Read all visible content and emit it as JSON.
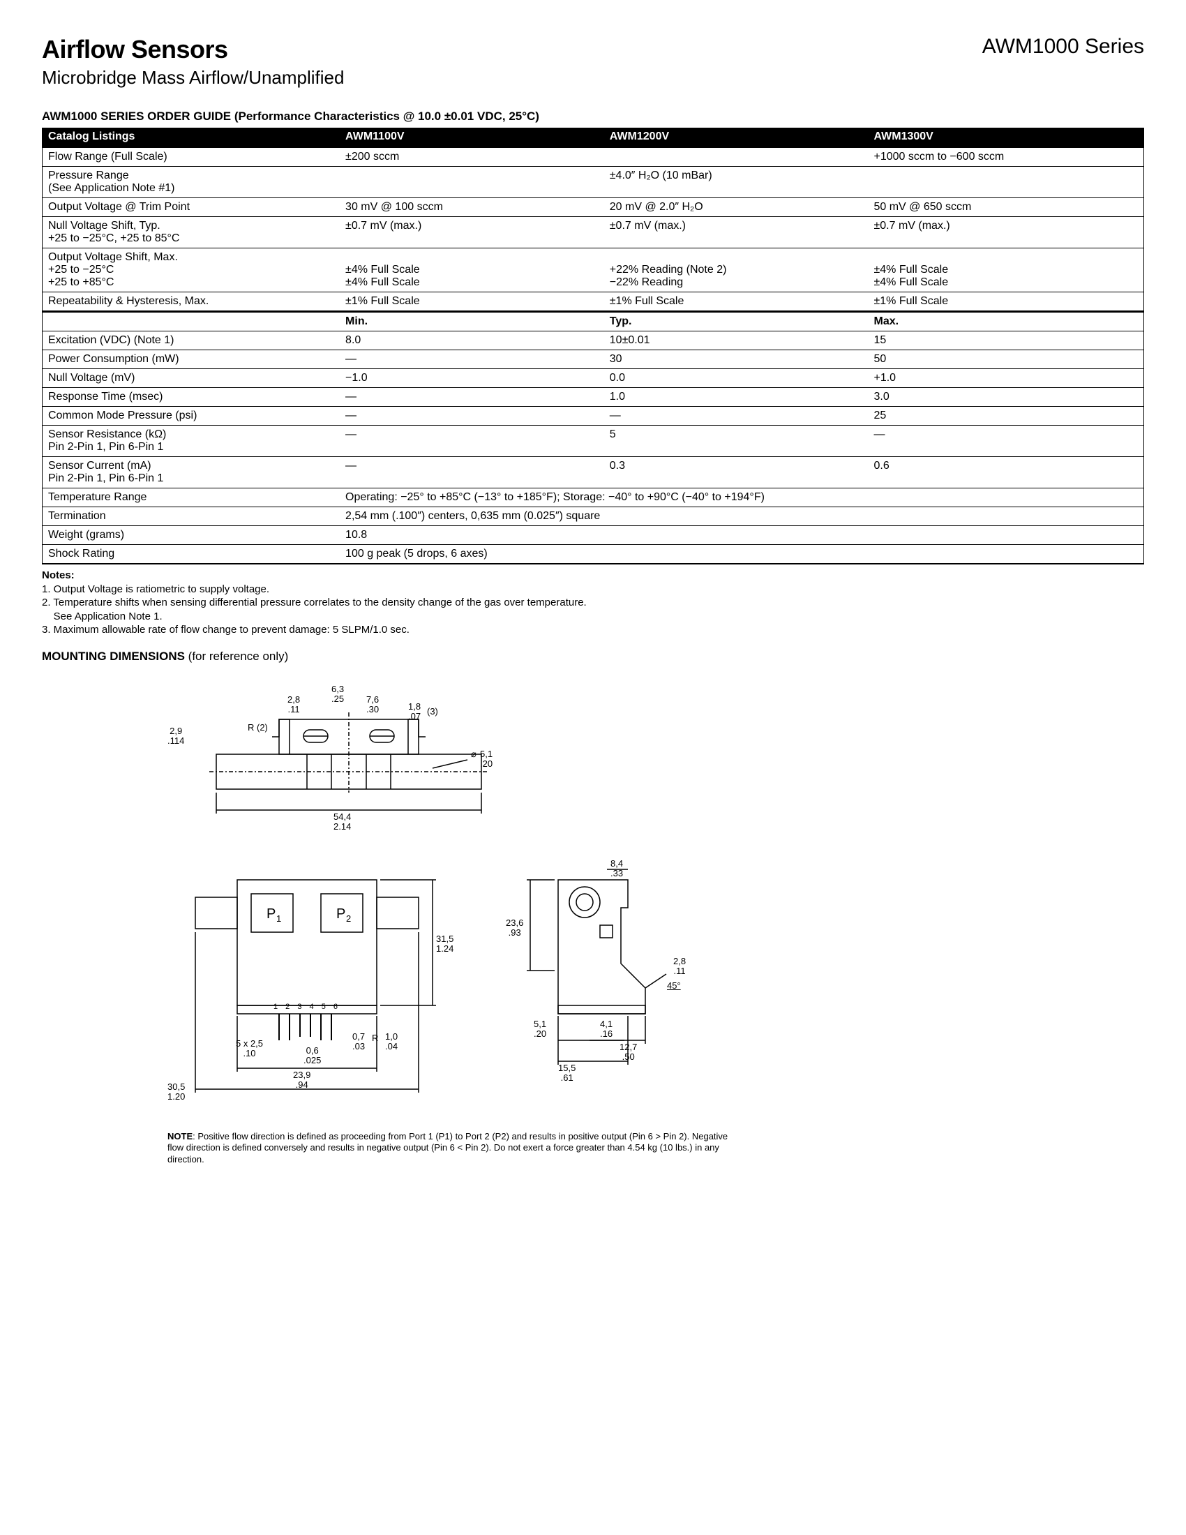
{
  "header": {
    "title": "Airflow Sensors",
    "series": "AWM1000 Series",
    "subtitle": "Microbridge Mass Airflow/Unamplified"
  },
  "orderGuide": {
    "heading": "AWM1000 SERIES ORDER GUIDE (Performance Characteristics @ 10.0 ±0.01 VDC, 25°C)",
    "catalogLabel": "Catalog Listings",
    "cols": [
      "AWM1100V",
      "AWM1200V",
      "AWM1300V"
    ],
    "rows": [
      {
        "label": "Flow Range (Full Scale)",
        "a": "±200 sccm",
        "b": "",
        "c": "+1000 sccm to −600 sccm"
      },
      {
        "label": "Pressure Range\n(See Application Note #1)",
        "a": "",
        "b": "±4.0″ H₂O (10 mBar)",
        "c": ""
      },
      {
        "label": "Output Voltage @ Trim Point",
        "a": "30 mV @ 100 sccm",
        "b": "20 mV @ 2.0″ H₂O",
        "c": "50 mV @ 650 sccm"
      },
      {
        "label": "Null Voltage Shift, Typ.\n+25 to −25°C, +25 to 85°C",
        "a": "±0.7 mV (max.)",
        "b": "±0.7 mV (max.)",
        "c": "±0.7 mV (max.)"
      },
      {
        "label": "Output Voltage Shift, Max.\n+25 to −25°C\n+25 to +85°C",
        "a": "\n±4% Full Scale\n±4% Full Scale",
        "b": "\n+22% Reading (Note 2)\n−22% Reading",
        "c": "\n±4% Full Scale\n±4% Full Scale"
      },
      {
        "label": "Repeatability & Hysteresis, Max.",
        "a": "±1% Full Scale",
        "b": "±1% Full Scale",
        "c": "±1% Full Scale"
      }
    ],
    "subhdr": [
      "",
      "Min.",
      "Typ.",
      "Max."
    ],
    "rows2": [
      {
        "label": "Excitation (VDC) (Note 1)",
        "a": "8.0",
        "b": "10±0.01",
        "c": "15"
      },
      {
        "label": "Power Consumption (mW)",
        "a": "—",
        "b": "30",
        "c": "50"
      },
      {
        "label": "Null Voltage (mV)",
        "a": "−1.0",
        "b": "0.0",
        "c": "+1.0"
      },
      {
        "label": "Response Time (msec)",
        "a": "—",
        "b": "1.0",
        "c": "3.0"
      },
      {
        "label": "Common Mode Pressure (psi)",
        "a": "—",
        "b": "—",
        "c": "25"
      },
      {
        "label": "Sensor Resistance (kΩ)\nPin 2-Pin 1, Pin 6-Pin 1",
        "a": "—",
        "b": "5",
        "c": "—"
      },
      {
        "label": "Sensor Current (mA)\nPin 2-Pin 1, Pin 6-Pin 1",
        "a": "—",
        "b": "0.3",
        "c": "0.6"
      }
    ],
    "rows3": [
      {
        "label": "Temperature Range",
        "span": "Operating: −25° to +85°C (−13° to +185°F); Storage: −40° to +90°C (−40° to +194°F)"
      },
      {
        "label": "Termination",
        "span": "2,54 mm (.100″) centers, 0,635 mm (0.025″) square"
      },
      {
        "label": "Weight (grams)",
        "span": "10.8"
      },
      {
        "label": "Shock Rating",
        "span": "100 g peak (5 drops, 6 axes)"
      }
    ]
  },
  "notes": {
    "title": "Notes:",
    "items": [
      "1. Output Voltage is ratiometric to supply voltage.",
      "2. Temperature shifts when sensing differential pressure correlates to the density change of the gas over temperature.\n    See Application Note 1.",
      "3. Maximum allowable rate of flow change to prevent damage: 5 SLPM/1.0 sec."
    ]
  },
  "mounting": {
    "heading": "MOUNTING DIMENSIONS",
    "light": " (for reference only)"
  },
  "dims": {
    "top": {
      "d29": "2,9\n.114",
      "r2": "R (2)",
      "d28": "2,8\n.11",
      "d63": "6,3\n.25",
      "d76": "7,6\n.30",
      "d18": "1,8\n.07",
      "p3": "(3)",
      "d51": "5,1\n.20",
      "phi": "⌀",
      "d544": "54,4\n2.14"
    },
    "front": {
      "p1": "P₁",
      "p2": "P₂",
      "d315": "31,5\n1.24",
      "pins": "1 2 3 4 5 6",
      "d5x25": "5 x 2,5\n.10",
      "d06": "0,6\n.025",
      "d07r": "0,7\n.03",
      "r": "R",
      "d10": "1,0\n.04",
      "d239": "23,9\n.94",
      "d305": "30,5\n1.20"
    },
    "side": {
      "d84": "8,4\n.33",
      "d236": "23,6\n.93",
      "d28": "2,8\n.11",
      "d45": "45°",
      "d51": "5,1\n.20",
      "d41": "4,1\n.16",
      "d127": "12,7\n.50",
      "d155": "15,5\n.61"
    }
  },
  "footnote": "NOTE: Positive flow direction is defined as proceeding from Port 1 (P1) to Port 2 (P2) and results in positive output (Pin 6 > Pin 2).  Negative flow direction is defined conversely and results in negative output (Pin 6 < Pin 2). Do not exert a force greater than 4.54 kg (10 lbs.) in any direction."
}
